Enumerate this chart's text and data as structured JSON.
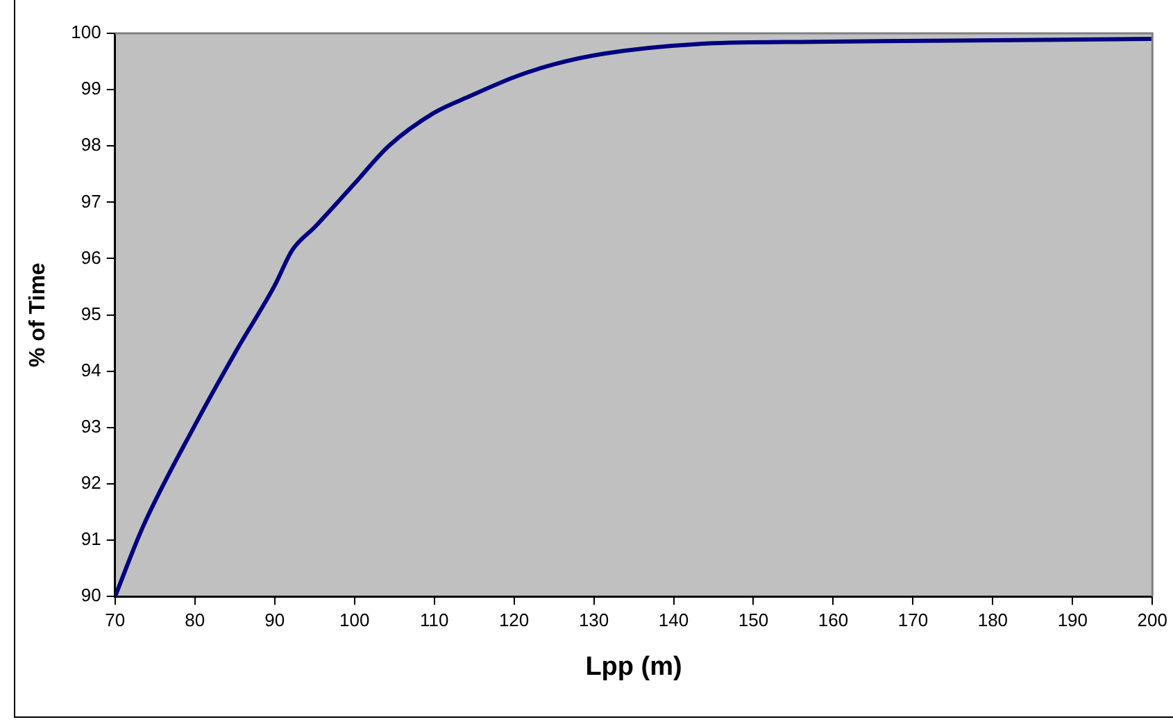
{
  "chart_data": {
    "type": "line",
    "xlabel": "Lpp (m)",
    "ylabel": "% of Time",
    "series": [
      {
        "color": "#000080",
        "x": [
          70,
          73.5,
          80,
          85.3,
          90,
          92.2,
          95.1,
          100,
          104.3,
          110,
          114.4,
          120,
          125,
          131.3,
          143,
          157.5,
          175,
          200
        ],
        "values": [
          90,
          91.24,
          93.04,
          94.39,
          95.52,
          96.15,
          96.57,
          97.33,
          98.0,
          98.59,
          98.88,
          99.22,
          99.45,
          99.64,
          99.81,
          99.85,
          99.87,
          99.9
        ]
      }
    ],
    "xlim": [
      70,
      200
    ],
    "xticks": [
      70,
      80,
      90,
      100,
      110,
      120,
      130,
      140,
      150,
      160,
      170,
      180,
      190,
      200
    ],
    "ylim": [
      90,
      100
    ],
    "yticks": [
      90,
      91,
      92,
      93,
      94,
      95,
      96,
      97,
      98,
      99,
      100
    ],
    "grid": false,
    "legend": false,
    "marker": "none",
    "line_style": "solid"
  }
}
